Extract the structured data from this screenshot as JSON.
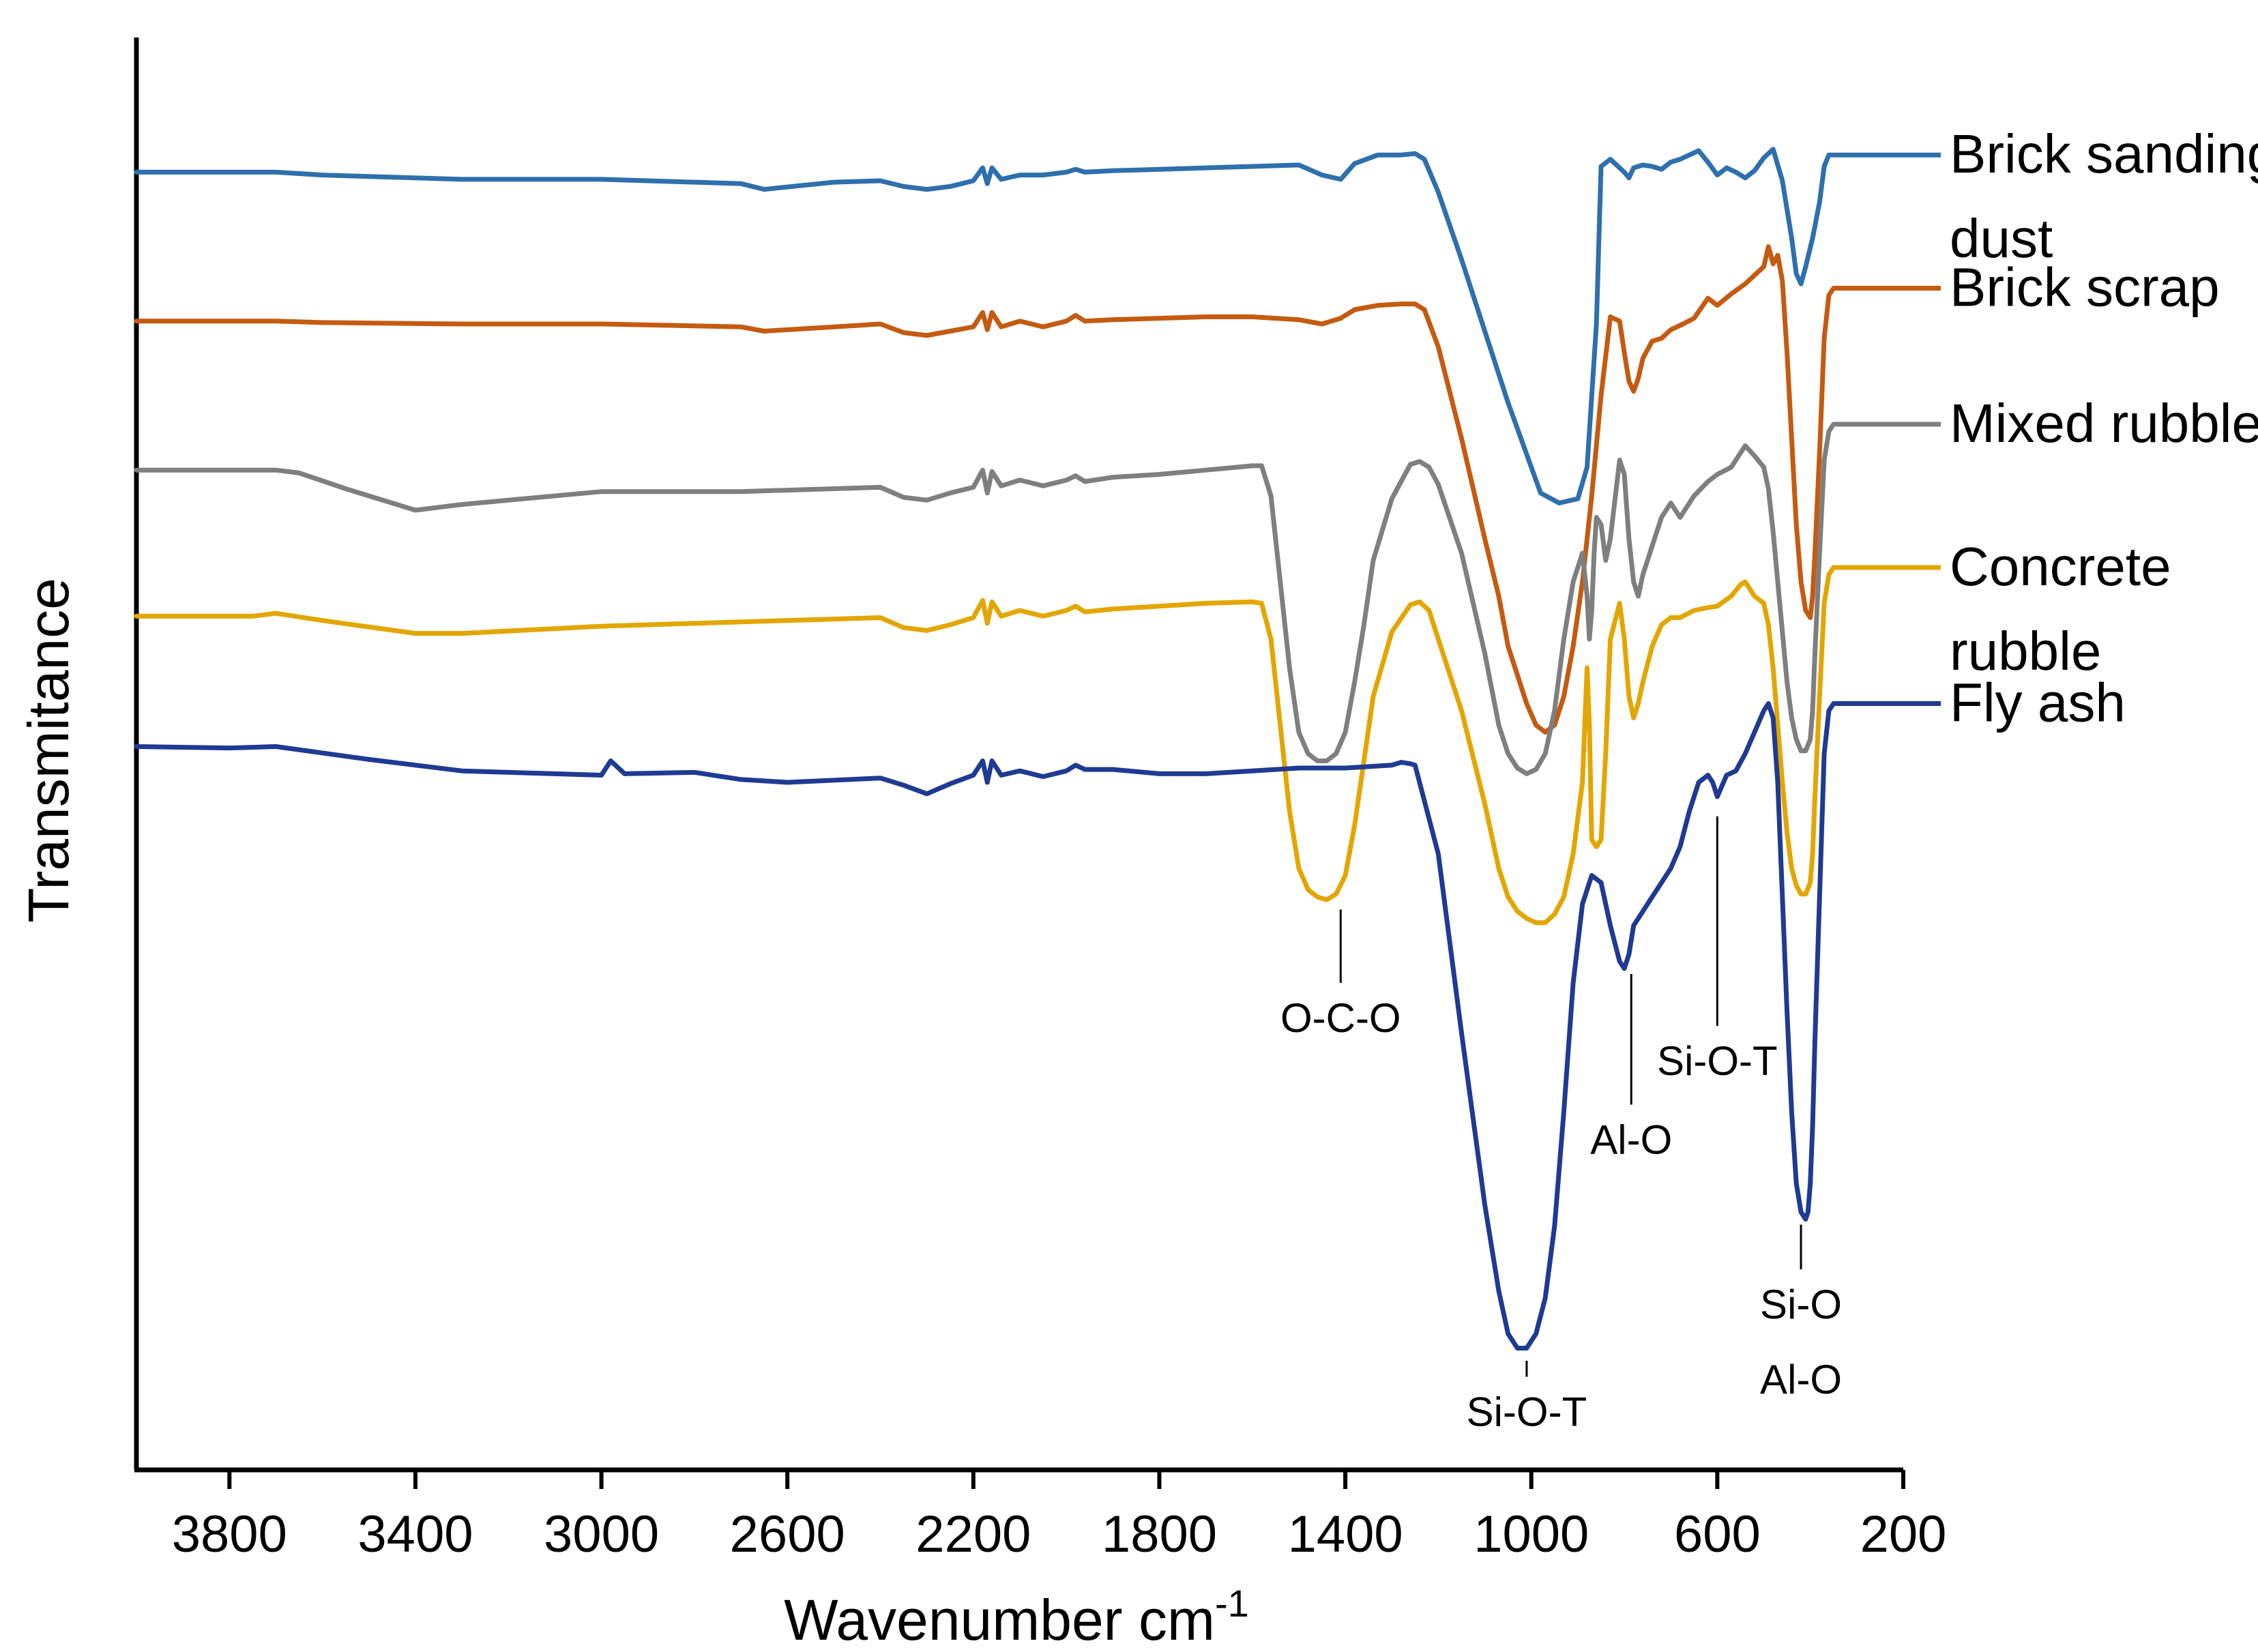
{
  "chart_data": {
    "type": "line",
    "title": "",
    "xlabel": "Wavenumber cm",
    "xlabel_superscript": "-1",
    "ylabel": "Transmitance",
    "xlim": [
      4000,
      200
    ],
    "xticks": [
      3800,
      3400,
      3000,
      2600,
      2200,
      1800,
      1400,
      1000,
      600,
      200
    ],
    "xtick_labels": [
      "3800",
      "3400",
      "3000",
      "2600",
      "2200",
      "1800",
      "1400",
      "1000",
      "600",
      "200"
    ],
    "ylim": [
      0,
      100
    ],
    "y_units": "arbitrary (offset stacked spectra)",
    "grid": false,
    "legend_position": "right",
    "series": [
      {
        "name": "Brick sanding dust",
        "label_lines": [
          "Brick sanding",
          "dust"
        ],
        "color": "#2e6fad",
        "x": [
          4000,
          3700,
          3600,
          3300,
          3000,
          2700,
          2650,
          2500,
          2400,
          2350,
          2300,
          2250,
          2200,
          2180,
          2170,
          2160,
          2140,
          2100,
          2050,
          2000,
          1980,
          1960,
          1900,
          1800,
          1700,
          1600,
          1500,
          1450,
          1410,
          1380,
          1330,
          1280,
          1250,
          1230,
          1200,
          1150,
          1100,
          1050,
          980,
          940,
          900,
          880,
          860,
          850,
          830,
          800,
          790,
          780,
          760,
          740,
          720,
          700,
          680,
          660,
          640,
          620,
          600,
          580,
          560,
          540,
          520,
          500,
          480,
          460,
          440,
          430,
          420,
          410,
          395,
          380,
          370,
          360,
          350,
          340,
          330
        ],
        "y": [
          90.6,
          90.6,
          90.4,
          90.1,
          90.1,
          89.8,
          89.4,
          89.9,
          90.0,
          89.6,
          89.4,
          89.6,
          90.0,
          90.9,
          89.8,
          90.9,
          90.1,
          90.4,
          90.4,
          90.6,
          90.8,
          90.6,
          90.7,
          90.8,
          90.9,
          91.0,
          91.1,
          90.4,
          90.1,
          91.2,
          91.8,
          91.8,
          91.9,
          91.5,
          89.2,
          84.5,
          79.5,
          74.5,
          68.2,
          67.5,
          67.8,
          70.0,
          80.0,
          91.0,
          91.5,
          90.6,
          90.2,
          90.9,
          91.1,
          91.0,
          90.8,
          91.3,
          91.5,
          91.8,
          92.1,
          91.3,
          90.4,
          90.9,
          90.6,
          90.2,
          90.7,
          91.6,
          92.2,
          90.0,
          86.0,
          83.5,
          82.8,
          84.0,
          86.0,
          88.5,
          91.0,
          91.8,
          91.8,
          91.8,
          91.8
        ]
      },
      {
        "name": "Brick scrap",
        "label_lines": [
          "Brick scrap"
        ],
        "color": "#c55a11",
        "x": [
          4000,
          3700,
          3600,
          3300,
          3000,
          2700,
          2650,
          2500,
          2400,
          2350,
          2300,
          2250,
          2200,
          2180,
          2170,
          2160,
          2140,
          2100,
          2050,
          2000,
          1980,
          1960,
          1900,
          1800,
          1700,
          1600,
          1500,
          1450,
          1410,
          1380,
          1330,
          1280,
          1250,
          1230,
          1200,
          1150,
          1100,
          1070,
          1050,
          1030,
          1010,
          990,
          970,
          950,
          930,
          910,
          890,
          870,
          850,
          830,
          810,
          800,
          790,
          780,
          770,
          760,
          740,
          720,
          700,
          680,
          650,
          620,
          600,
          570,
          540,
          520,
          500,
          490,
          480,
          470,
          460,
          450,
          440,
          430,
          420,
          410,
          400,
          395,
          390,
          380,
          370,
          360,
          350,
          340,
          330
        ],
        "y": [
          80.2,
          80.2,
          80.1,
          80.0,
          80.0,
          79.8,
          79.5,
          79.8,
          80.0,
          79.4,
          79.2,
          79.5,
          79.8,
          80.8,
          79.6,
          80.8,
          79.8,
          80.2,
          79.8,
          80.2,
          80.6,
          80.2,
          80.3,
          80.4,
          80.5,
          80.5,
          80.3,
          80.0,
          80.4,
          81.0,
          81.3,
          81.4,
          81.4,
          81.0,
          78.4,
          72.0,
          65.0,
          61.0,
          57.5,
          55.5,
          53.5,
          52.0,
          51.5,
          52.0,
          54.0,
          57.5,
          62.0,
          68.0,
          75.0,
          80.5,
          80.2,
          78.0,
          76.0,
          75.3,
          76.2,
          77.6,
          78.8,
          79.0,
          79.6,
          79.9,
          80.4,
          81.8,
          81.3,
          82.1,
          82.8,
          83.4,
          84.0,
          85.4,
          84.2,
          84.8,
          83.0,
          78.0,
          72.0,
          66.0,
          62.0,
          60.0,
          59.5,
          61.0,
          64.0,
          71.0,
          79.0,
          82.0,
          82.5,
          82.5,
          82.5
        ]
      },
      {
        "name": "Mixed rubble",
        "label_lines": [
          "Mixed rubble"
        ],
        "color": "#7f7f7f",
        "x": [
          4000,
          3700,
          3650,
          3550,
          3400,
          3300,
          3000,
          2700,
          2500,
          2400,
          2350,
          2300,
          2250,
          2200,
          2180,
          2170,
          2160,
          2140,
          2100,
          2050,
          2000,
          1980,
          1960,
          1900,
          1800,
          1700,
          1600,
          1580,
          1560,
          1540,
          1520,
          1500,
          1480,
          1460,
          1440,
          1420,
          1400,
          1380,
          1360,
          1340,
          1300,
          1260,
          1240,
          1220,
          1200,
          1150,
          1100,
          1070,
          1050,
          1030,
          1010,
          990,
          970,
          950,
          930,
          910,
          890,
          880,
          875,
          870,
          865,
          860,
          850,
          840,
          830,
          810,
          800,
          790,
          780,
          770,
          760,
          740,
          720,
          700,
          680,
          650,
          620,
          600,
          570,
          550,
          540,
          520,
          500,
          490,
          480,
          470,
          460,
          450,
          440,
          430,
          420,
          410,
          400,
          395,
          390,
          380,
          370,
          360,
          350,
          340,
          330
        ],
        "y": [
          69.8,
          69.8,
          69.6,
          68.5,
          67.0,
          67.4,
          68.3,
          68.3,
          68.5,
          68.6,
          67.9,
          67.7,
          68.2,
          68.6,
          69.8,
          68.2,
          69.7,
          68.7,
          69.1,
          68.7,
          69.1,
          69.4,
          69.0,
          69.3,
          69.5,
          69.8,
          70.1,
          70.1,
          68.0,
          62.0,
          56.0,
          51.5,
          50.0,
          49.5,
          49.5,
          50.0,
          51.5,
          55.0,
          59.0,
          63.5,
          67.8,
          70.2,
          70.4,
          70.0,
          68.8,
          64.0,
          57.0,
          52.0,
          50.0,
          49.0,
          48.6,
          48.9,
          50.0,
          53.0,
          58.0,
          62.0,
          64.0,
          61.0,
          58.0,
          60.0,
          64.0,
          66.5,
          66.0,
          63.5,
          65.0,
          70.5,
          69.5,
          65.0,
          62.0,
          61.0,
          62.5,
          64.5,
          66.5,
          67.5,
          66.5,
          68.0,
          69.0,
          69.5,
          70.0,
          71.0,
          71.5,
          70.8,
          70.0,
          68.5,
          65.5,
          62.0,
          58.5,
          55.0,
          52.5,
          51.0,
          50.2,
          50.2,
          51.0,
          53.0,
          57.0,
          64.0,
          70.5,
          72.5,
          73.0,
          73.0,
          73.0
        ]
      },
      {
        "name": "Concrete rubble",
        "label_lines": [
          "Concrete",
          "rubble"
        ],
        "color": "#e3a600",
        "x": [
          4000,
          3750,
          3700,
          3600,
          3400,
          3300,
          3000,
          2700,
          2500,
          2400,
          2350,
          2300,
          2250,
          2200,
          2180,
          2170,
          2160,
          2140,
          2100,
          2050,
          2000,
          1980,
          1960,
          1900,
          1800,
          1700,
          1600,
          1580,
          1560,
          1540,
          1520,
          1500,
          1480,
          1460,
          1440,
          1420,
          1400,
          1380,
          1360,
          1340,
          1300,
          1260,
          1240,
          1220,
          1200,
          1150,
          1100,
          1070,
          1050,
          1030,
          1010,
          990,
          970,
          950,
          930,
          910,
          890,
          885,
          880,
          875,
          870,
          860,
          850,
          840,
          830,
          810,
          800,
          790,
          780,
          770,
          760,
          740,
          720,
          700,
          680,
          650,
          620,
          600,
          570,
          550,
          540,
          520,
          500,
          490,
          480,
          470,
          460,
          450,
          440,
          430,
          420,
          410,
          400,
          395,
          390,
          380,
          370,
          360,
          350,
          340,
          330
        ],
        "y": [
          59.6,
          59.6,
          59.8,
          59.3,
          58.4,
          58.4,
          58.9,
          59.2,
          59.4,
          59.5,
          58.8,
          58.6,
          59.0,
          59.5,
          60.7,
          59.1,
          60.6,
          59.6,
          60.0,
          59.6,
          60.0,
          60.3,
          59.9,
          60.1,
          60.3,
          60.5,
          60.6,
          60.5,
          58.0,
          52.0,
          46.0,
          42.0,
          40.5,
          40.0,
          39.8,
          40.2,
          41.5,
          45.0,
          49.5,
          54.0,
          58.5,
          60.4,
          60.6,
          60.0,
          58.0,
          53.0,
          46.5,
          42.0,
          40.0,
          39.0,
          38.5,
          38.2,
          38.2,
          38.8,
          40.0,
          43.0,
          48.0,
          52.0,
          56.0,
          52.0,
          44.0,
          43.5,
          44.0,
          50.0,
          58.0,
          60.5,
          58.0,
          54.0,
          52.5,
          53.5,
          55.0,
          57.5,
          59.0,
          59.5,
          59.5,
          60.0,
          60.2,
          60.3,
          61.0,
          61.8,
          62.0,
          61.0,
          60.5,
          59.0,
          56.0,
          52.0,
          48.0,
          44.5,
          42.0,
          40.8,
          40.2,
          40.2,
          41.0,
          43.0,
          47.0,
          54.0,
          60.5,
          62.5,
          63.0,
          63.0,
          63.0
        ]
      },
      {
        "name": "Fly ash",
        "label_lines": [
          "Fly ash"
        ],
        "color": "#1f3a93",
        "x": [
          4000,
          3800,
          3700,
          3500,
          3300,
          3000,
          2980,
          2950,
          2800,
          2700,
          2600,
          2400,
          2350,
          2300,
          2250,
          2200,
          2180,
          2170,
          2160,
          2140,
          2100,
          2050,
          2000,
          1980,
          1960,
          1900,
          1800,
          1700,
          1600,
          1500,
          1400,
          1300,
          1280,
          1260,
          1250,
          1200,
          1150,
          1100,
          1070,
          1050,
          1030,
          1010,
          990,
          970,
          950,
          930,
          910,
          890,
          870,
          850,
          830,
          810,
          800,
          790,
          780,
          770,
          760,
          740,
          720,
          700,
          680,
          660,
          640,
          620,
          610,
          600,
          580,
          560,
          540,
          520,
          500,
          490,
          480,
          470,
          460,
          450,
          440,
          430,
          420,
          410,
          405,
          400,
          395,
          390,
          380,
          370,
          360,
          350,
          340,
          330
        ],
        "y": [
          50.5,
          50.4,
          50.5,
          49.6,
          48.8,
          48.5,
          49.5,
          48.6,
          48.7,
          48.2,
          48.0,
          48.3,
          47.8,
          47.2,
          47.9,
          48.5,
          49.5,
          48.0,
          49.5,
          48.5,
          48.8,
          48.4,
          48.8,
          49.2,
          48.9,
          48.9,
          48.6,
          48.6,
          48.8,
          49.0,
          49.0,
          49.2,
          49.4,
          49.3,
          49.2,
          43.0,
          30.5,
          18.5,
          12.5,
          9.5,
          8.5,
          8.5,
          9.5,
          12.0,
          17.0,
          25.0,
          34.0,
          39.5,
          41.5,
          41.0,
          38.0,
          35.5,
          35.0,
          36.0,
          38.0,
          38.5,
          39.0,
          40.0,
          41.0,
          42.0,
          43.5,
          46.0,
          48.0,
          48.5,
          48.0,
          47.0,
          48.5,
          48.8,
          50.0,
          51.5,
          53.0,
          53.5,
          52.5,
          48.0,
          40.0,
          32.0,
          25.0,
          20.0,
          18.0,
          17.5,
          18.0,
          20.0,
          24.0,
          30.0,
          40.0,
          50.0,
          53.0,
          53.5,
          53.5,
          53.5
        ]
      }
    ],
    "annotations": [
      {
        "label_lines": [
          "O-C-O"
        ],
        "x": 1410,
        "y_peak": 39.5,
        "y_label_end": 34.0
      },
      {
        "label_lines": [
          "Si-O-T"
        ],
        "x": 1010,
        "y_peak": 8.0,
        "y_label_end": 6.5
      },
      {
        "label_lines": [
          "Si-O-T"
        ],
        "x": 600,
        "y_peak": 46.0,
        "y_label_end": 31.0
      },
      {
        "label_lines": [
          "Al-O"
        ],
        "x": 785,
        "y_peak": 35.0,
        "y_label_end": 25.5
      },
      {
        "label_lines": [
          "Si-O",
          "Al-O"
        ],
        "x": 420,
        "y_peak": 17.5,
        "y_label_end": 14.0
      }
    ]
  }
}
